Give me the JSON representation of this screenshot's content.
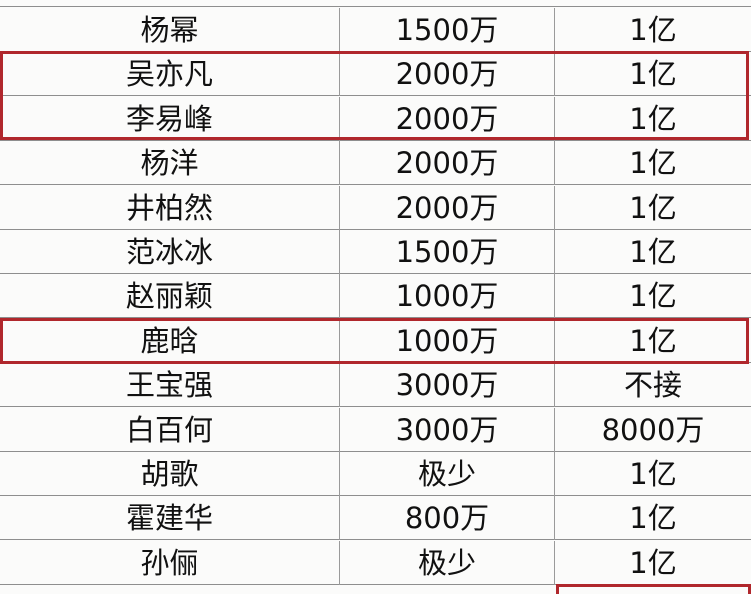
{
  "table": {
    "rows": [
      {
        "name": "杨幂",
        "value1": "1500万",
        "value2": "1亿"
      },
      {
        "name": "吴亦凡",
        "value1": "2000万",
        "value2": "1亿"
      },
      {
        "name": "李易峰",
        "value1": "2000万",
        "value2": "1亿"
      },
      {
        "name": "杨洋",
        "value1": "2000万",
        "value2": "1亿"
      },
      {
        "name": "井柏然",
        "value1": "2000万",
        "value2": "1亿"
      },
      {
        "name": "范冰冰",
        "value1": "1500万",
        "value2": "1亿"
      },
      {
        "name": "赵丽颖",
        "value1": "1000万",
        "value2": "1亿"
      },
      {
        "name": "鹿晗",
        "value1": "1000万",
        "value2": "1亿"
      },
      {
        "name": "王宝强",
        "value1": "3000万",
        "value2": "不接"
      },
      {
        "name": "白百何",
        "value1": "3000万",
        "value2": "8000万"
      },
      {
        "name": "胡歌",
        "value1": "极少",
        "value2": "1亿"
      },
      {
        "name": "霍建华",
        "value1": "800万",
        "value2": "1亿"
      },
      {
        "name": "孙俪",
        "value1": "极少",
        "value2": "1亿"
      }
    ]
  },
  "highlight_color": "#b0272c"
}
